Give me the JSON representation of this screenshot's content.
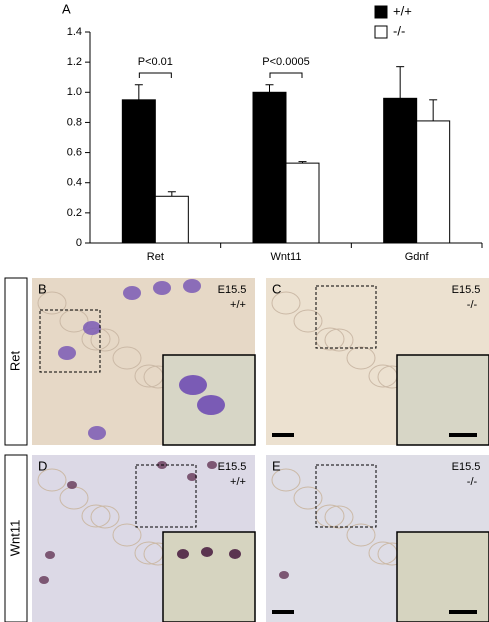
{
  "chart_data": {
    "type": "bar",
    "panel_label": "A",
    "categories": [
      "Ret",
      "Wnt11",
      "Gdnf"
    ],
    "series": [
      {
        "name": "+/+",
        "color": "#000000",
        "values": [
          0.95,
          1.0,
          0.96
        ],
        "errors": [
          0.1,
          0.05,
          0.21
        ]
      },
      {
        "name": "-/-",
        "color": "#ffffff",
        "values": [
          0.31,
          0.53,
          0.81
        ],
        "errors": [
          0.03,
          0.01,
          0.14
        ]
      }
    ],
    "ylim": [
      0,
      1.4
    ],
    "yticks": [
      0,
      0.2,
      0.4,
      0.6,
      0.8,
      {
        "value": 1,
        "label": "1.0"
      },
      1.2,
      1.4
    ],
    "annotations": [
      "P<0.01",
      "P<0.0005"
    ],
    "legend": "top-right"
  },
  "rows": [
    "Ret",
    "Wnt11"
  ],
  "panels": [
    {
      "label": "B",
      "stage": "E15.5",
      "genotype": "+/+"
    },
    {
      "label": "C",
      "stage": "E15.5",
      "genotype": "-/-"
    },
    {
      "label": "D",
      "stage": "E15.5",
      "genotype": "+/+"
    },
    {
      "label": "E",
      "stage": "E15.5",
      "genotype": "-/-"
    }
  ]
}
